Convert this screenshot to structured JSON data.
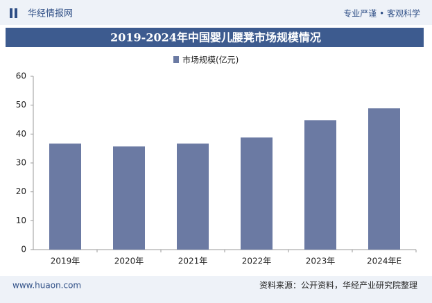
{
  "header": {
    "logo": "华经情报网",
    "slogan": "专业严谨 • 客观科学"
  },
  "chart_data": {
    "type": "bar",
    "title": "2019-2024年中国婴儿腰凳市场规模情况",
    "categories": [
      "2019年",
      "2020年",
      "2021年",
      "2022年",
      "2023年",
      "2024年E"
    ],
    "series": [
      {
        "name": "市场规模(亿元)",
        "color": "#6b7aa3",
        "values": [
          36.7,
          35.7,
          36.7,
          38.8,
          44.8,
          48.9
        ]
      }
    ],
    "ylim": [
      0,
      60
    ],
    "yticks": [
      0,
      10,
      20,
      30,
      40,
      50,
      60
    ],
    "grid": false
  },
  "footer": {
    "website": "www.huaon.com",
    "source": "资料来源：公开资料，华经产业研究院整理"
  }
}
